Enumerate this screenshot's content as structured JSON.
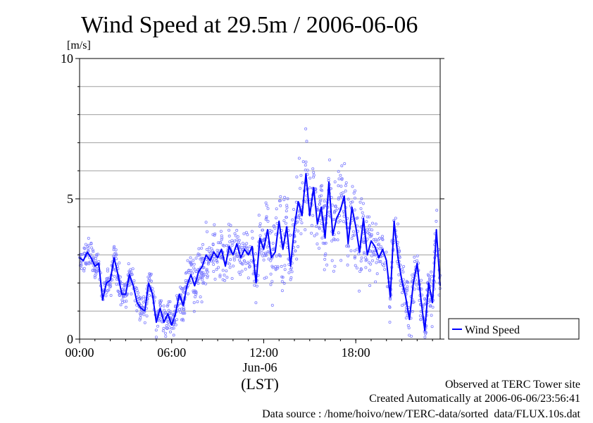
{
  "chart_data": {
    "type": "scatter",
    "title": "Wind Speed at 29.5m / 2006-06-06",
    "ylabel": "[m/s]",
    "xlabel": "(LST)",
    "x_date_label": "Jun-06",
    "ylim": [
      0,
      10
    ],
    "yticks": [
      {
        "value": 0,
        "label": "0"
      },
      {
        "value": 5,
        "label": "5"
      },
      {
        "value": 10,
        "label": "10"
      }
    ],
    "ygrid": [
      1,
      2,
      3,
      4,
      5,
      6,
      7,
      8,
      9
    ],
    "xlim_hours": [
      0,
      23.5
    ],
    "xticks": [
      {
        "value": 0,
        "label": "00:00"
      },
      {
        "value": 6,
        "label": "06:00"
      },
      {
        "value": 12,
        "label": "12:00"
      },
      {
        "value": 18,
        "label": "18:00"
      }
    ],
    "grid": true,
    "legend_position": "right",
    "series": [
      {
        "name": "Wind Speed",
        "color": "#0000ff",
        "marker": "circle-open",
        "line": [
          {
            "x": 0.0,
            "y": 2.9
          },
          {
            "x": 0.25,
            "y": 2.8
          },
          {
            "x": 0.5,
            "y": 3.1
          },
          {
            "x": 0.75,
            "y": 2.9
          },
          {
            "x": 1.0,
            "y": 2.6
          },
          {
            "x": 1.25,
            "y": 2.7
          },
          {
            "x": 1.5,
            "y": 1.4
          },
          {
            "x": 1.75,
            "y": 2.0
          },
          {
            "x": 2.0,
            "y": 2.1
          },
          {
            "x": 2.25,
            "y": 2.9
          },
          {
            "x": 2.5,
            "y": 2.3
          },
          {
            "x": 2.75,
            "y": 1.6
          },
          {
            "x": 3.0,
            "y": 1.6
          },
          {
            "x": 3.25,
            "y": 2.3
          },
          {
            "x": 3.5,
            "y": 1.9
          },
          {
            "x": 3.75,
            "y": 1.3
          },
          {
            "x": 4.0,
            "y": 1.1
          },
          {
            "x": 4.25,
            "y": 1.0
          },
          {
            "x": 4.5,
            "y": 2.0
          },
          {
            "x": 4.75,
            "y": 1.6
          },
          {
            "x": 5.0,
            "y": 0.6
          },
          {
            "x": 5.25,
            "y": 1.1
          },
          {
            "x": 5.5,
            "y": 0.6
          },
          {
            "x": 5.75,
            "y": 0.9
          },
          {
            "x": 6.0,
            "y": 0.5
          },
          {
            "x": 6.25,
            "y": 0.9
          },
          {
            "x": 6.5,
            "y": 1.6
          },
          {
            "x": 6.75,
            "y": 1.2
          },
          {
            "x": 7.0,
            "y": 1.9
          },
          {
            "x": 7.25,
            "y": 2.3
          },
          {
            "x": 7.5,
            "y": 1.9
          },
          {
            "x": 7.75,
            "y": 2.4
          },
          {
            "x": 8.0,
            "y": 2.6
          },
          {
            "x": 8.25,
            "y": 3.0
          },
          {
            "x": 8.5,
            "y": 2.8
          },
          {
            "x": 8.75,
            "y": 3.1
          },
          {
            "x": 9.0,
            "y": 2.9
          },
          {
            "x": 9.25,
            "y": 3.2
          },
          {
            "x": 9.5,
            "y": 2.6
          },
          {
            "x": 9.75,
            "y": 3.3
          },
          {
            "x": 10.0,
            "y": 3.0
          },
          {
            "x": 10.25,
            "y": 3.4
          },
          {
            "x": 10.5,
            "y": 2.9
          },
          {
            "x": 10.75,
            "y": 3.2
          },
          {
            "x": 11.0,
            "y": 3.0
          },
          {
            "x": 11.25,
            "y": 3.3
          },
          {
            "x": 11.5,
            "y": 2.0
          },
          {
            "x": 11.75,
            "y": 3.6
          },
          {
            "x": 12.0,
            "y": 3.2
          },
          {
            "x": 12.25,
            "y": 3.9
          },
          {
            "x": 12.5,
            "y": 2.9
          },
          {
            "x": 12.75,
            "y": 3.1
          },
          {
            "x": 13.0,
            "y": 4.2
          },
          {
            "x": 13.25,
            "y": 3.2
          },
          {
            "x": 13.5,
            "y": 4.0
          },
          {
            "x": 13.75,
            "y": 2.6
          },
          {
            "x": 14.0,
            "y": 4.0
          },
          {
            "x": 14.25,
            "y": 4.9
          },
          {
            "x": 14.5,
            "y": 4.4
          },
          {
            "x": 14.75,
            "y": 5.9
          },
          {
            "x": 15.0,
            "y": 4.4
          },
          {
            "x": 15.25,
            "y": 5.4
          },
          {
            "x": 15.5,
            "y": 4.1
          },
          {
            "x": 15.75,
            "y": 4.7
          },
          {
            "x": 16.0,
            "y": 3.6
          },
          {
            "x": 16.25,
            "y": 5.6
          },
          {
            "x": 16.5,
            "y": 3.7
          },
          {
            "x": 16.75,
            "y": 4.3
          },
          {
            "x": 17.0,
            "y": 4.6
          },
          {
            "x": 17.25,
            "y": 5.1
          },
          {
            "x": 17.5,
            "y": 3.4
          },
          {
            "x": 17.75,
            "y": 4.7
          },
          {
            "x": 18.0,
            "y": 4.0
          },
          {
            "x": 18.25,
            "y": 3.1
          },
          {
            "x": 18.5,
            "y": 4.3
          },
          {
            "x": 18.75,
            "y": 3.0
          },
          {
            "x": 19.0,
            "y": 3.5
          },
          {
            "x": 19.25,
            "y": 3.3
          },
          {
            "x": 19.5,
            "y": 2.9
          },
          {
            "x": 19.75,
            "y": 3.2
          },
          {
            "x": 20.0,
            "y": 2.8
          },
          {
            "x": 20.25,
            "y": 1.5
          },
          {
            "x": 20.5,
            "y": 4.2
          },
          {
            "x": 20.75,
            "y": 2.9
          },
          {
            "x": 21.0,
            "y": 2.1
          },
          {
            "x": 21.25,
            "y": 1.5
          },
          {
            "x": 21.5,
            "y": 0.7
          },
          {
            "x": 21.75,
            "y": 2.0
          },
          {
            "x": 22.0,
            "y": 2.7
          },
          {
            "x": 22.25,
            "y": 1.4
          },
          {
            "x": 22.5,
            "y": 0.3
          },
          {
            "x": 22.75,
            "y": 2.0
          },
          {
            "x": 23.0,
            "y": 1.3
          },
          {
            "x": 23.25,
            "y": 3.9
          },
          {
            "x": 23.5,
            "y": 1.9
          }
        ]
      }
    ]
  },
  "footer": {
    "line1": "Observed at TERC Tower site",
    "line2": "Created Automatically at 2006-06-06/23:56:41",
    "line3": "Data source : /home/hoivo/new/TERC-data/sorted  data/FLUX.10s.dat"
  }
}
